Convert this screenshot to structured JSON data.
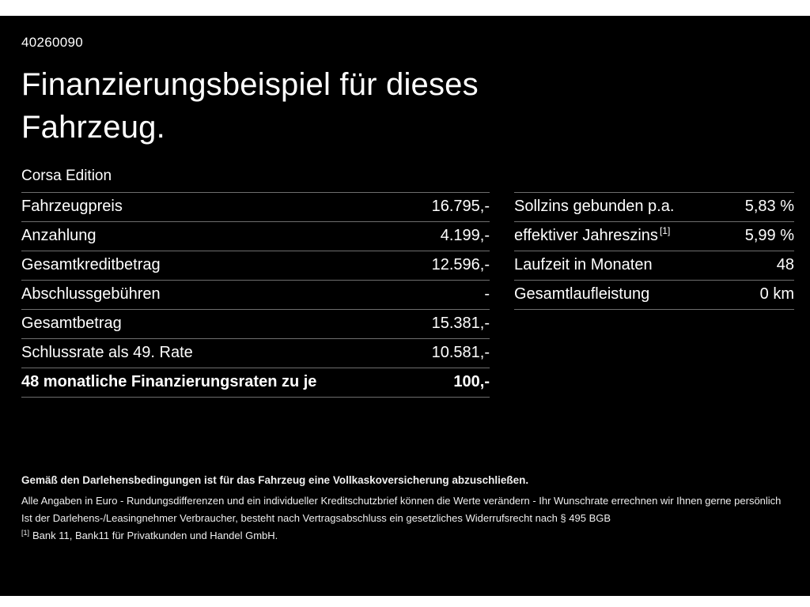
{
  "meta": {
    "offer_id": "40260090"
  },
  "header": {
    "title_lines": [
      "Finanzierungsbeispiel für dieses",
      "Fahrzeug."
    ],
    "model": "Corsa Edition"
  },
  "financing_table": {
    "rows": [
      {
        "label": "Fahrzeugpreis",
        "value": "16.795,-"
      },
      {
        "label": "Anzahlung",
        "value": "4.199,-"
      },
      {
        "label": "Gesamtkreditbetrag",
        "value": "12.596,-"
      },
      {
        "label": "Abschlussgebühren",
        "value": "-"
      },
      {
        "label": "Gesamtbetrag",
        "value": "15.381,-"
      },
      {
        "label": "Schlussrate als 49. Rate",
        "value": "10.581,-"
      },
      {
        "label": "48 monatliche Finanzierungsraten zu je",
        "value": "100,-"
      }
    ]
  },
  "conditions_table": {
    "rows": [
      {
        "label": "Sollzins gebunden p.a.",
        "value": "5,83 %"
      },
      {
        "label": "effektiver Jahreszins",
        "sup": "[1]",
        "value": "5,99 %"
      },
      {
        "label": "Laufzeit in Monaten",
        "value": "48"
      },
      {
        "label": "Gesamtlaufleistung",
        "value": "0 km"
      }
    ]
  },
  "footnotes": {
    "insurance_note": "Gemäß den Darlehensbedingungen ist für das Fahrzeug eine Vollkaskoversicherung abzuschließen.",
    "disclaimer1": "Alle Angaben in Euro - Rundungsdifferenzen und ein individueller Kreditschutzbrief können die Werte verändern - Ihr Wunschrate errechnen wir Ihnen gerne persönlich",
    "disclaimer2": "Ist der Darlehens-/Leasingnehmer Verbraucher, besteht nach Vertragsabschluss ein gesetzliches Widerrufsrecht nach § 495 BGB",
    "bank_ref_marker": "[1]",
    "bank_note": "Bank 11, Bank11 für Privatkunden und Handel GmbH."
  },
  "colors": {
    "bg": "#000000",
    "page": "#ffffff",
    "text": "#ffffff",
    "divider": "#6e6e6e"
  }
}
